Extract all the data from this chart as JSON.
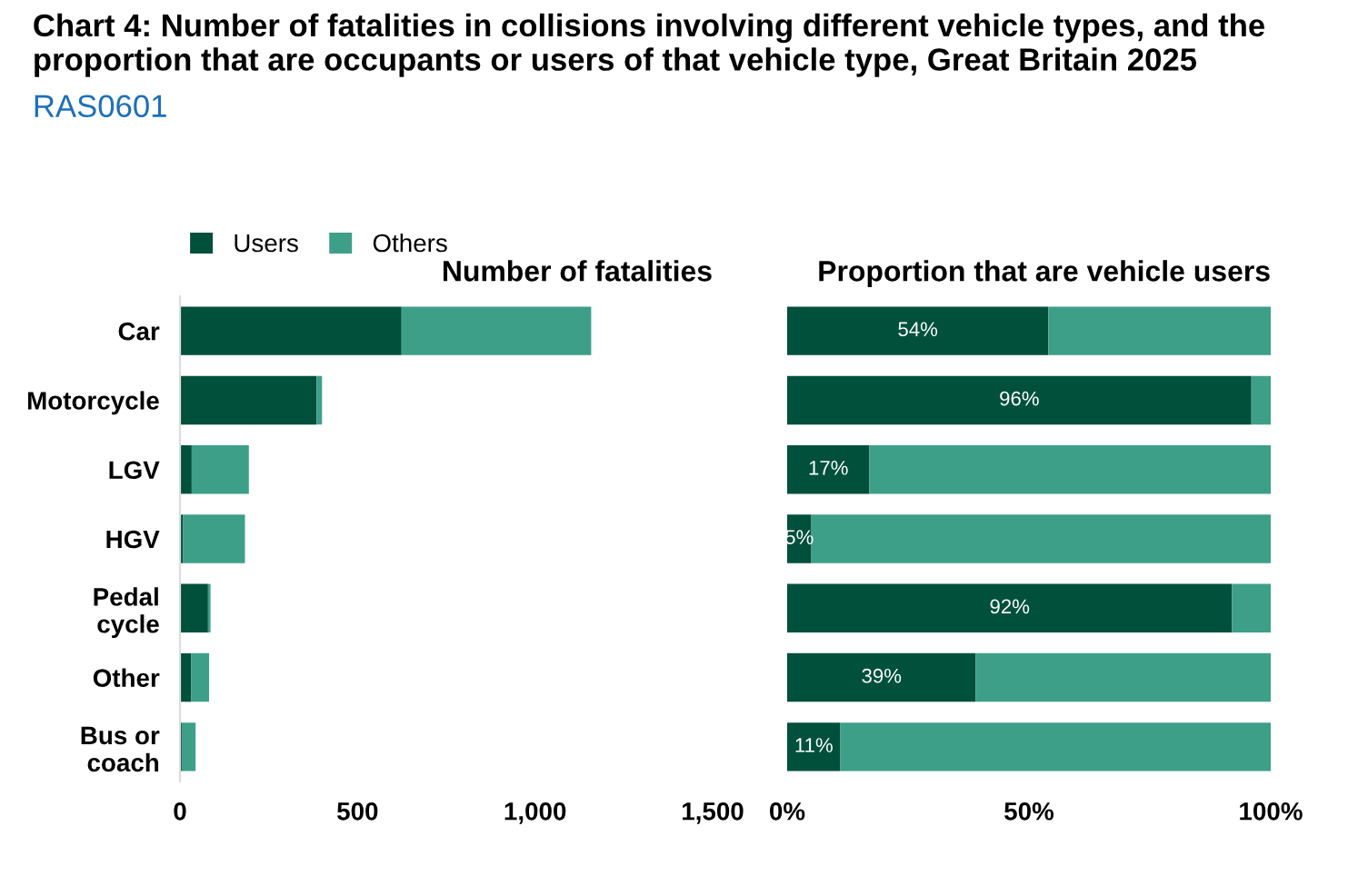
{
  "chart_data": [
    {
      "type": "bar",
      "orientation": "horizontal",
      "stacked": true,
      "title": "Number of fatalities",
      "annotations": [
        "Chart 4: Number of fatalities in collisions involving different vehicle types, and the proportion that are occupants or users of that vehicle type, Great Britain 2025",
        "RAS0601"
      ],
      "categories": [
        "Car",
        "Motorcycle",
        "LGV",
        "HGV",
        "Pedal\ncycle",
        "Other",
        "Bus or\ncoach"
      ],
      "series": [
        {
          "name": "Users",
          "color": "#00503c",
          "values": [
            624,
            385,
            33,
            9,
            79,
            32,
            5
          ]
        },
        {
          "name": "Others",
          "color": "#3e9f89",
          "values": [
            534,
            15,
            161,
            174,
            7,
            50,
            39
          ]
        }
      ],
      "xlim": [
        0,
        1500
      ],
      "xticks": [
        0,
        500,
        {
          "value": 1000,
          "label": "1,000"
        },
        {
          "value": 1500,
          "label": "1,500"
        }
      ],
      "legend": "top left",
      "grid": false
    },
    {
      "type": "bar",
      "orientation": "horizontal",
      "stacked": true,
      "title": "Proportion that are vehicle users",
      "categories": [
        null,
        null,
        null,
        null,
        null,
        null,
        null
      ],
      "series": [
        {
          "color": "#00503c",
          "values": [
            54,
            96,
            17,
            5,
            92,
            39,
            11
          ],
          "value_labels": [
            "54%",
            "96%",
            "17%",
            "5%",
            "92%",
            "39%",
            "11%"
          ]
        },
        {
          "color": "#3e9f89",
          "values": [
            46,
            4,
            83,
            95,
            8,
            61,
            89
          ]
        }
      ],
      "xlim": [
        0,
        100
      ],
      "xticks": [
        {
          "value": 0,
          "label": "0%"
        },
        {
          "value": 50,
          "label": "50%"
        },
        {
          "value": 100,
          "label": "100%"
        }
      ],
      "grid": false
    }
  ]
}
